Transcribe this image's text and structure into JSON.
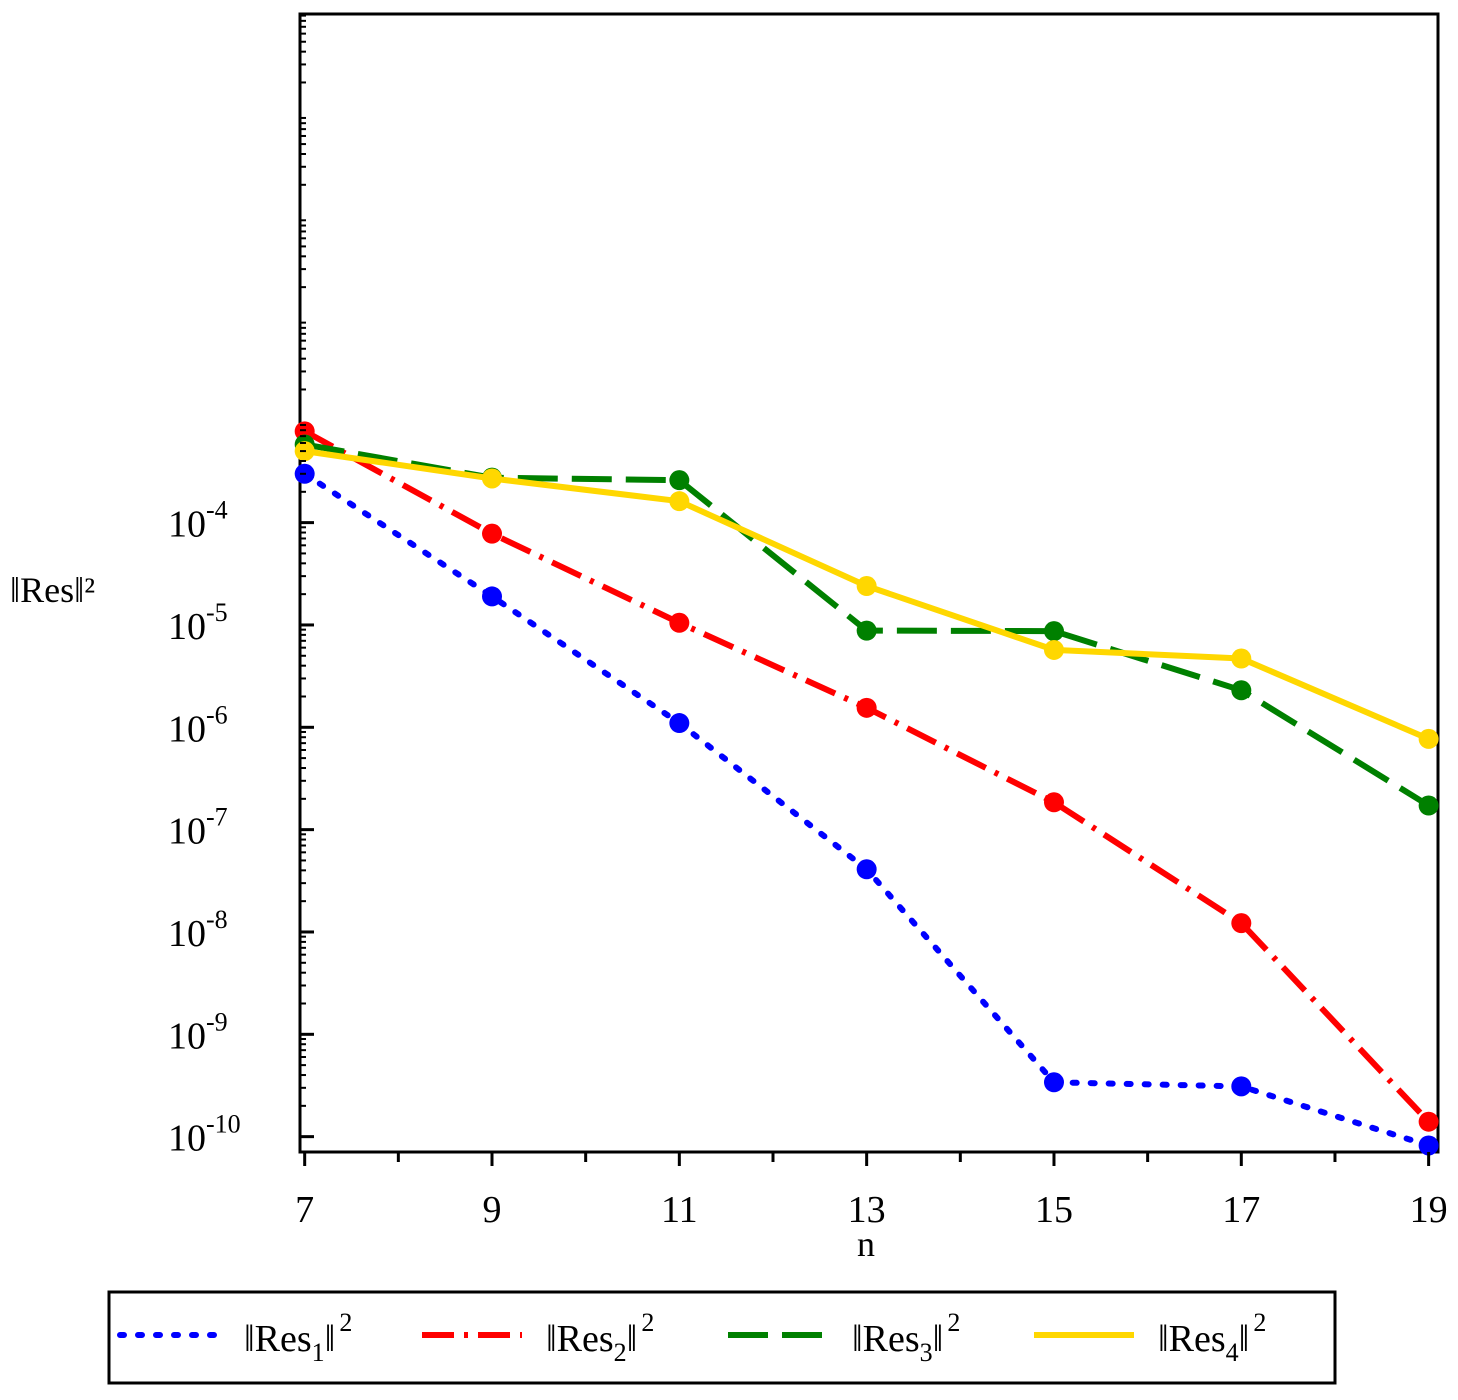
{
  "chart_data": {
    "type": "line",
    "title": "",
    "xlabel": "n",
    "ylabel": "‖Res‖²",
    "yscale": "log",
    "x": [
      7,
      9,
      11,
      13,
      15,
      17,
      19
    ],
    "xlim": [
      6.95,
      19.1
    ],
    "ylim_exp": [
      -10.15,
      0.97
    ],
    "x_ticks": [
      "7",
      "9",
      "11",
      "13",
      "15",
      "17",
      "19"
    ],
    "y_ticks": [
      {
        "exp": -4,
        "base": "10",
        "power": "-4"
      },
      {
        "exp": -5,
        "base": "10",
        "power": "-5"
      },
      {
        "exp": -6,
        "base": "10",
        "power": "-6"
      },
      {
        "exp": -7,
        "base": "10",
        "power": "-7"
      },
      {
        "exp": -8,
        "base": "10",
        "power": "-8"
      },
      {
        "exp": -9,
        "base": "10",
        "power": "-9"
      },
      {
        "exp": -10,
        "base": "10",
        "power": "-10"
      }
    ],
    "series": [
      {
        "name": "‖Res1‖²",
        "label_main": "‖Res",
        "label_sub": "1",
        "label_end": "‖",
        "label_sup": "2",
        "color": "#0000ff",
        "dash": "4 14",
        "linecap": "round",
        "values": [
          0.0003,
          1.9e-05,
          1.1e-06,
          4.1e-08,
          3.4e-10,
          3.1e-10,
          8.2e-11
        ]
      },
      {
        "name": "‖Res2‖²",
        "label_main": "‖Res",
        "label_sub": "2",
        "label_end": "‖",
        "label_sup": "2",
        "color": "#ff0000",
        "dash": "32 10 4 10",
        "linecap": "butt",
        "values": [
          0.00078,
          7.8e-05,
          1.05e-05,
          1.55e-06,
          1.85e-07,
          1.22e-08,
          1.4e-10
        ]
      },
      {
        "name": "‖Res3‖²",
        "label_main": "‖Res",
        "label_sub": "3",
        "label_end": "‖",
        "label_sup": "2",
        "color": "#008000",
        "dash": "40 14",
        "linecap": "butt",
        "values": [
          0.00058,
          0.000275,
          0.00026,
          8.8e-06,
          8.7e-06,
          2.3e-06,
          1.72e-07
        ]
      },
      {
        "name": "‖Res4‖²",
        "label_main": "‖Res",
        "label_sub": "4",
        "label_end": "‖",
        "label_sup": "2",
        "color": "#ffd700",
        "dash": "",
        "linecap": "butt",
        "values": [
          0.0005,
          0.00027,
          0.000162,
          2.4e-05,
          5.7e-06,
          4.7e-06,
          7.7e-07
        ]
      }
    ],
    "legend_position": "bottom"
  }
}
